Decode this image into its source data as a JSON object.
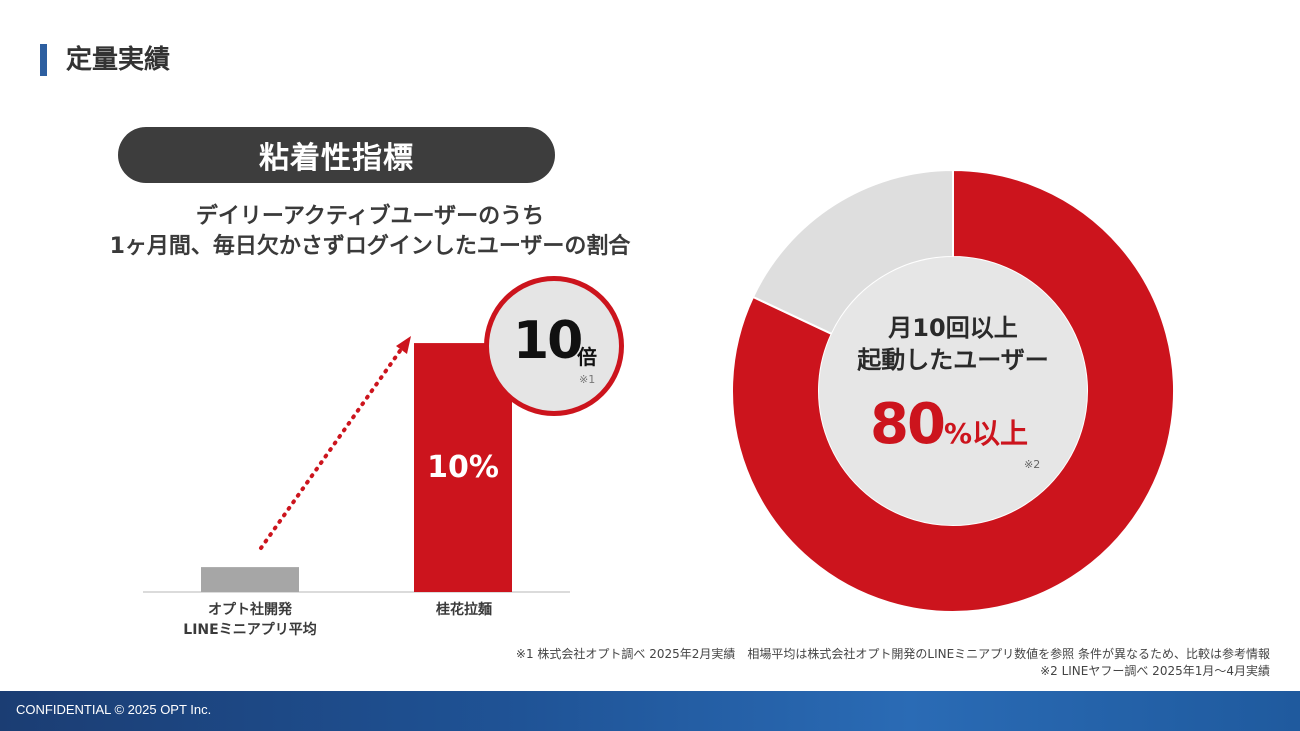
{
  "header": {
    "title": "定量実績"
  },
  "section": {
    "pill_label": "粘着性指標",
    "subtitle_line1": "デイリーアクティブユーザーのうち",
    "subtitle_line2": "1ヶ月間、毎日欠かさずログインしたユーザーの割合"
  },
  "chart_data": [
    {
      "type": "bar",
      "categories": [
        "オプト社開発\nLINEミニアプリ平均",
        "桂花拉麺"
      ],
      "category_lines": [
        [
          "オプト社開発",
          "LINEミニアプリ平均"
        ],
        [
          "桂花拉麺"
        ]
      ],
      "values": [
        1,
        10
      ],
      "unit": "%",
      "data_labels": [
        "",
        "10%"
      ],
      "colors": [
        "#a6a6a6",
        "#cc141d"
      ],
      "ylim": [
        0,
        10
      ],
      "annotation": {
        "value": "10",
        "unit": "倍",
        "note": "※1"
      }
    },
    {
      "type": "pie",
      "donut": true,
      "values": [
        82,
        18
      ],
      "colors": [
        "#cc141d",
        "#dedede"
      ],
      "center_line1": "月10回以上",
      "center_line2": "起動したユーザー",
      "center_value": "80",
      "center_unit": "%以上",
      "note": "※2"
    }
  ],
  "footnotes": {
    "line1": "※1 株式会社オプト調べ 2025年2月実績　相場平均は株式会社オプト開発のLINEミニアプリ数値を参照 条件が異なるため、比較は参考情報",
    "line2": "※2 LINEヤフー調べ 2025年1月～4月実績"
  },
  "footer": {
    "text": "CONFIDENTIAL  © 2025 OPT Inc."
  }
}
